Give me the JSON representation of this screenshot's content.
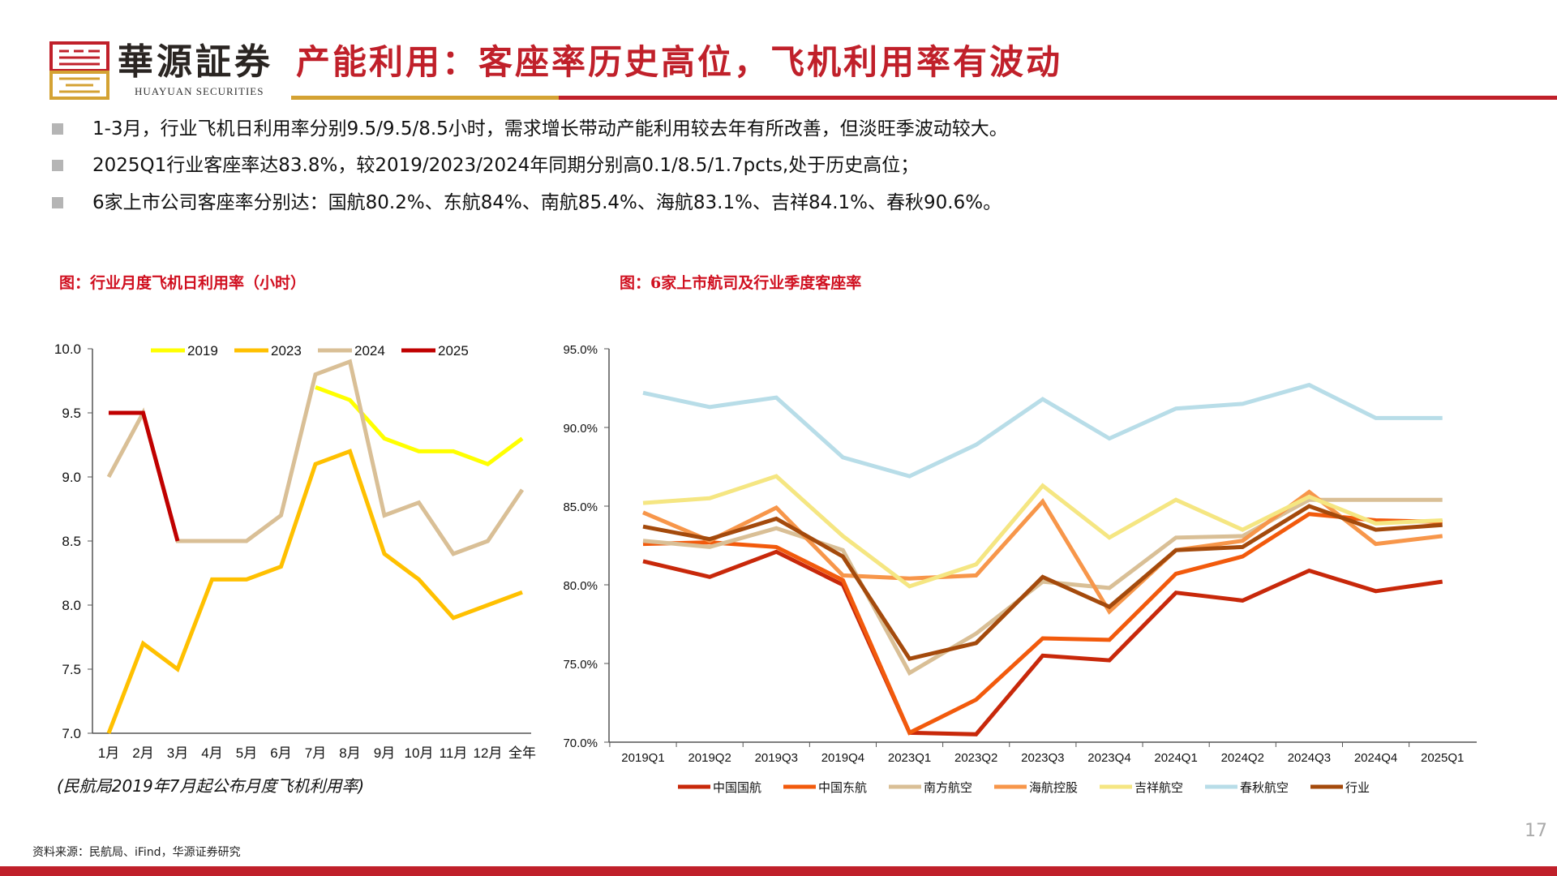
{
  "header": {
    "brand_cn": "華源証券",
    "brand_en": "HUAYUAN SECURITIES",
    "title": "产能利用：客座率历史高位，飞机利用率有波动",
    "colors": {
      "accent": "#c0202a",
      "gold": "#d4a233"
    }
  },
  "bullets": [
    "1-3月，行业飞机日利用率分别9.5/9.5/8.5小时，需求增长带动产能利用较去年有所改善，但淡旺季波动较大。",
    "2025Q1行业客座率达83.8%，较2019/2023/2024年同期分别高0.1/8.5/1.7pcts,处于历史高位；",
    "6家上市公司客座率分别达：国航80.2%、东航84%、南航85.4%、海航83.1%、吉祥84.1%、春秋90.6%。"
  ],
  "chart_data": [
    {
      "type": "line",
      "title": "图：行业月度飞机日利用率（小时）",
      "note": "(民航局2019年7月起公布月度飞机利用率)",
      "categories": [
        "1月",
        "2月",
        "3月",
        "4月",
        "5月",
        "6月",
        "7月",
        "8月",
        "9月",
        "10月",
        "11月",
        "12月",
        "全年"
      ],
      "ylim": [
        7.0,
        10.0
      ],
      "yticks": [
        "7.0",
        "7.5",
        "8.0",
        "8.5",
        "9.0",
        "9.5",
        "10.0"
      ],
      "legend": "top",
      "series": [
        {
          "name": "2019",
          "color": "#ffff00",
          "values": [
            null,
            null,
            null,
            null,
            null,
            null,
            9.7,
            9.6,
            9.3,
            9.2,
            9.2,
            9.1,
            9.3
          ]
        },
        {
          "name": "2023",
          "color": "#ffc000",
          "values": [
            7.0,
            7.7,
            7.5,
            8.2,
            8.2,
            8.3,
            9.1,
            9.2,
            8.4,
            8.2,
            7.9,
            8.0,
            8.1
          ]
        },
        {
          "name": "2024",
          "color": "#d9bf96",
          "values": [
            9.0,
            9.5,
            8.5,
            8.5,
            8.5,
            8.7,
            9.8,
            9.9,
            8.7,
            8.8,
            8.4,
            8.5,
            8.9
          ]
        },
        {
          "name": "2025",
          "color": "#c00000",
          "values": [
            9.5,
            9.5,
            8.5,
            null,
            null,
            null,
            null,
            null,
            null,
            null,
            null,
            null,
            null
          ]
        }
      ]
    },
    {
      "type": "line",
      "title": "图：6家上市航司及行业季度客座率",
      "categories": [
        "2019Q1",
        "2019Q2",
        "2019Q3",
        "2019Q4",
        "2023Q1",
        "2023Q2",
        "2023Q3",
        "2023Q4",
        "2024Q1",
        "2024Q2",
        "2024Q3",
        "2024Q4",
        "2025Q1"
      ],
      "ylim": [
        70,
        95
      ],
      "yticks": [
        "70.0%",
        "75.0%",
        "80.0%",
        "85.0%",
        "90.0%",
        "95.0%"
      ],
      "legend": "bottom",
      "series": [
        {
          "name": "中国国航",
          "color": "#c8280a",
          "values": [
            81.5,
            80.5,
            82.1,
            80.0,
            70.6,
            70.5,
            75.5,
            75.2,
            79.5,
            79.0,
            80.9,
            79.6,
            80.2
          ]
        },
        {
          "name": "中国东航",
          "color": "#f25a0c",
          "values": [
            82.6,
            82.7,
            82.4,
            80.3,
            70.6,
            72.7,
            76.6,
            76.5,
            80.7,
            81.8,
            84.5,
            84.1,
            84.0
          ]
        },
        {
          "name": "南方航空",
          "color": "#d9bf96",
          "values": [
            82.8,
            82.4,
            83.6,
            82.2,
            74.4,
            76.9,
            80.2,
            79.8,
            83.0,
            83.1,
            85.4,
            85.4,
            85.4
          ]
        },
        {
          "name": "海航控股",
          "color": "#f7964a",
          "values": [
            84.6,
            82.8,
            84.9,
            80.6,
            80.4,
            80.6,
            85.3,
            78.3,
            82.2,
            82.8,
            85.9,
            82.6,
            83.1
          ]
        },
        {
          "name": "吉祥航空",
          "color": "#f5e682",
          "values": [
            85.2,
            85.5,
            86.9,
            83.1,
            79.9,
            81.3,
            86.3,
            83.0,
            85.4,
            83.5,
            85.6,
            83.9,
            84.1
          ]
        },
        {
          "name": "春秋航空",
          "color": "#b8dde8",
          "values": [
            92.2,
            91.3,
            91.9,
            88.1,
            86.9,
            88.9,
            91.8,
            89.3,
            91.2,
            91.5,
            92.7,
            90.6,
            90.6
          ]
        },
        {
          "name": "行业",
          "color": "#a44a0c",
          "values": [
            83.7,
            82.9,
            84.2,
            81.8,
            75.3,
            76.3,
            80.5,
            78.6,
            82.2,
            82.4,
            85.0,
            83.5,
            83.8
          ]
        }
      ]
    }
  ],
  "footer": {
    "source": "资料来源：民航局、iFind，华源证券研究",
    "page": "17"
  }
}
